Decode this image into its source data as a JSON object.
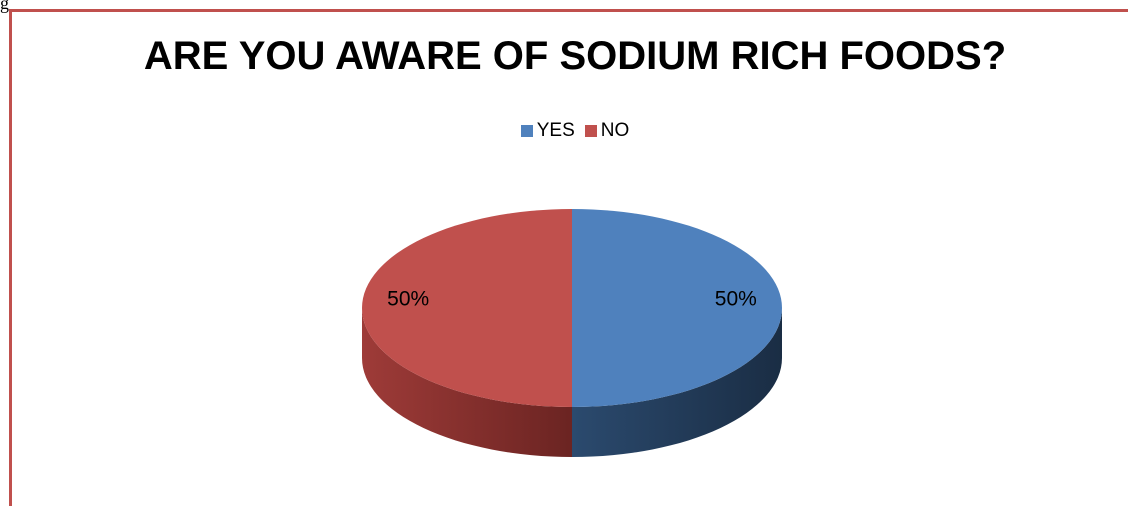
{
  "fragment_text": "g",
  "chart_data": {
    "type": "pie",
    "title": "ARE YOU AWARE OF SODIUM RICH FOODS?",
    "legend_position": "top",
    "categories": [
      "YES",
      "NO"
    ],
    "values": [
      50,
      50
    ],
    "data_labels": [
      "50%",
      "50%"
    ],
    "colors": [
      "#4f81bd",
      "#c0504d"
    ],
    "style": "3d"
  },
  "colors": {
    "border": "#c0504d"
  }
}
